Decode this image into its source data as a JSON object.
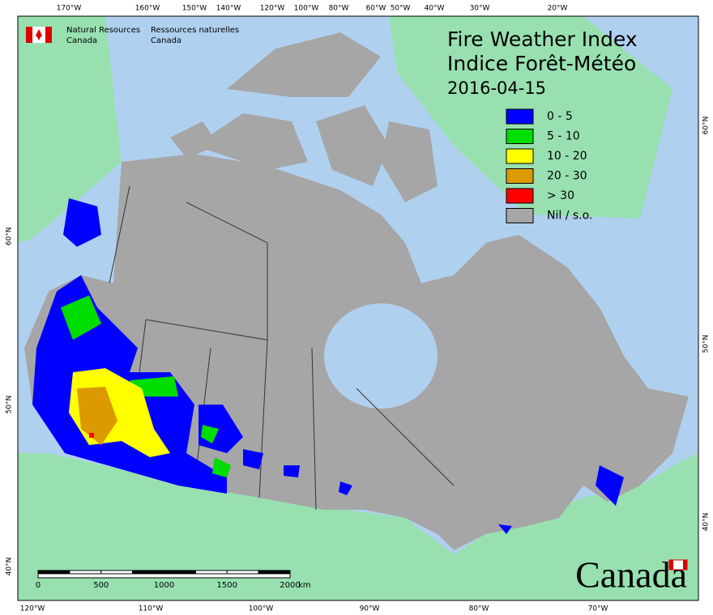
{
  "agency": {
    "en_line1": "Natural Resources",
    "en_line2": "Canada",
    "fr_line1": "Ressources naturelles",
    "fr_line2": "Canada"
  },
  "title": {
    "line1": "Fire Weather Index",
    "line2": "Indice Forêt-Météo",
    "date": "2016-04-15"
  },
  "legend": [
    {
      "label": "0 - 5",
      "color": "#0000ff"
    },
    {
      "label": "5 - 10",
      "color": "#00dd00"
    },
    {
      "label": "10 - 20",
      "color": "#ffff00"
    },
    {
      "label": "20 - 30",
      "color": "#dd9900"
    },
    {
      "label": "> 30",
      "color": "#ff0000"
    },
    {
      "label": "Nil / s.o.",
      "color": "#a6a6a6"
    }
  ],
  "top_labels": [
    "170°W",
    "160°W",
    "150°W",
    "140°W",
    "120°W",
    "100°W",
    "80°W",
    "60°W",
    "50°W",
    "40°W",
    "30°W",
    "20°W"
  ],
  "bottom_labels": [
    "120°W",
    "110°W",
    "100°W",
    "90°W",
    "80°W",
    "70°W"
  ],
  "left_labels": [
    "60°N",
    "50°N",
    "40°N"
  ],
  "right_labels": [
    "60°N",
    "50°N",
    "40°N"
  ],
  "scale": {
    "ticks": [
      0,
      500,
      1000,
      1500,
      2000
    ],
    "unit": "km"
  },
  "wordmark": "Canada"
}
